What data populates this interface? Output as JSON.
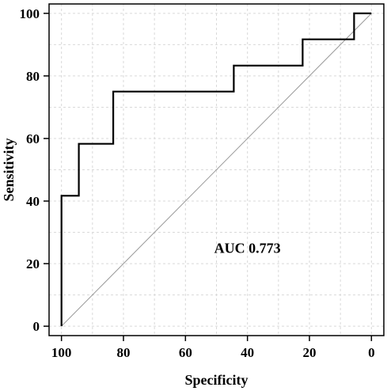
{
  "chart_data": {
    "type": "line",
    "title": "",
    "xlabel": "Specificity",
    "ylabel": "Sensitivity",
    "xlim": [
      104,
      -4
    ],
    "ylim": [
      -3,
      103
    ],
    "x_reversed": true,
    "x_ticks": [
      100,
      80,
      60,
      40,
      20,
      0
    ],
    "y_ticks": [
      0,
      20,
      40,
      60,
      80,
      100
    ],
    "grid": true,
    "series": [
      {
        "points": [
          [
            100,
            0
          ],
          [
            100,
            41.7
          ],
          [
            94.4,
            41.7
          ],
          [
            94.4,
            58.3
          ],
          [
            83.3,
            58.3
          ],
          [
            83.3,
            75
          ],
          [
            44.4,
            75
          ],
          [
            44.4,
            83.3
          ],
          [
            22.2,
            83.3
          ],
          [
            22.2,
            91.7
          ],
          [
            5.6,
            91.7
          ],
          [
            5.6,
            100
          ],
          [
            0,
            100
          ]
        ]
      }
    ],
    "reference_line": [
      [
        100,
        0
      ],
      [
        0,
        100
      ]
    ],
    "annotation": "AUC 0.773",
    "annotation_position": [
      40,
      25
    ]
  },
  "colors": {
    "curve": "#000000",
    "reference": "#9a9a9a",
    "grid": "#d9d9d9",
    "frame": "#000000"
  }
}
